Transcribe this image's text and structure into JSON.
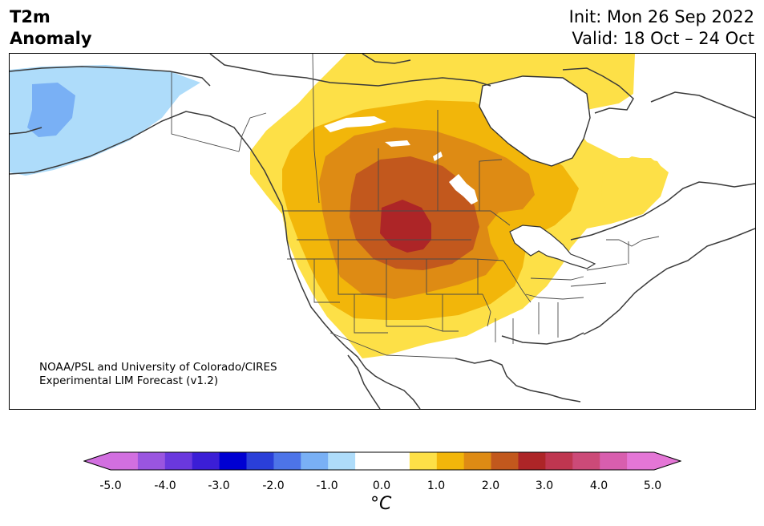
{
  "title": {
    "left_line1": "T2m",
    "left_line2": "Anomaly",
    "init": "Init: Mon 26 Sep 2022",
    "valid": "Valid: 18 Oct – 24 Oct"
  },
  "credit": {
    "line1": "NOAA/PSL and University of Colorado/CIRES",
    "line2": "Experimental LIM Forecast (v1.2)"
  },
  "colorbar": {
    "unit": "°C",
    "ticks": [
      "-5.0",
      "-4.0",
      "-3.0",
      "-2.0",
      "-1.0",
      "0.0",
      "1.0",
      "2.0",
      "3.0",
      "4.0",
      "5.0"
    ],
    "colors": [
      "#d26fe0",
      "#9a55e0",
      "#6a38de",
      "#3b1ed6",
      "#0000d2",
      "#2a3fd8",
      "#4d74e8",
      "#79b0f5",
      "#aedcfa",
      "#ffffff",
      "#ffffff",
      "#fde047",
      "#f2b60a",
      "#de8b14",
      "#c2581d",
      "#ad2527",
      "#bf3650",
      "#cc4a78",
      "#d85eae",
      "#e476d6"
    ]
  }
}
